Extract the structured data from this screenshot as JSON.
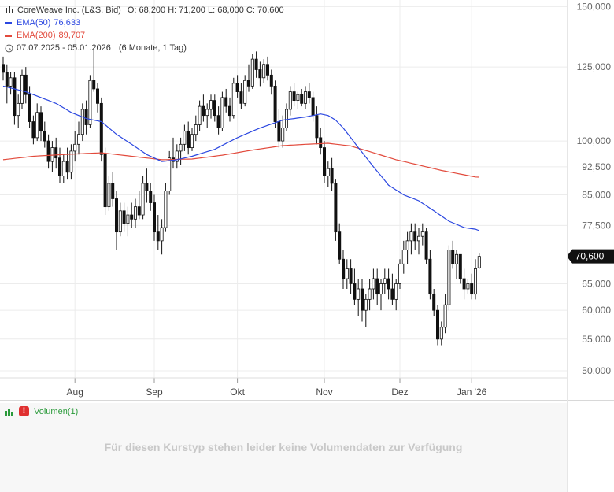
{
  "legend": {
    "title": "CoreWeave Inc. (L&S, Bid)",
    "ohlc": "O: 68,200   H: 71,200   L: 68,000   C: 70,600",
    "ema50": {
      "label": "EMA(50)",
      "value": "76,633",
      "color": "#2b47e0"
    },
    "ema200": {
      "label": "EMA(200)",
      "value": "89,707",
      "color": "#e24a3c"
    },
    "range": "07.07.2025 - 05.01.2026",
    "period": "(6 Monate, 1 Tag)"
  },
  "volume": {
    "label": "Volumen(1)",
    "message": "Für diesen Kurstyp stehen leider keine Volumendaten zur Verfügung"
  },
  "chart_data": {
    "type": "candlestick",
    "y_scale": "log",
    "ylim": [
      47000,
      153000
    ],
    "y_ticks": [
      50000,
      55000,
      60000,
      65000,
      70600,
      77500,
      85000,
      92500,
      100000,
      125000,
      150000
    ],
    "y_tick_labels": [
      "50,000",
      "55,000",
      "60,000",
      "65,000",
      "70,600",
      "77,500",
      "85,000",
      "92,500",
      "100,000",
      "125,000",
      "150,000"
    ],
    "last_price": 70600,
    "last_price_label": "70,600",
    "x_labels": [
      {
        "label": "Aug",
        "index": 19
      },
      {
        "label": "Sep",
        "index": 40
      },
      {
        "label": "Okt",
        "index": 62
      },
      {
        "label": "Nov",
        "index": 85
      },
      {
        "label": "Dez",
        "index": 105
      },
      {
        "label": "Jan '26",
        "index": 124
      }
    ],
    "candles": [
      [
        126000,
        129000,
        120000,
        123000
      ],
      [
        123000,
        126000,
        112000,
        118000
      ],
      [
        118000,
        123000,
        115000,
        121000
      ],
      [
        121000,
        123000,
        105000,
        108000
      ],
      [
        108000,
        115000,
        104000,
        112000
      ],
      [
        112000,
        124000,
        110000,
        122000
      ],
      [
        122000,
        125000,
        112000,
        115000
      ],
      [
        115000,
        118000,
        104000,
        106000
      ],
      [
        106000,
        108000,
        99000,
        101000
      ],
      [
        101000,
        112000,
        100000,
        109000
      ],
      [
        109000,
        111000,
        100000,
        103000
      ],
      [
        103000,
        106000,
        98000,
        100000
      ],
      [
        100000,
        102000,
        92000,
        94000
      ],
      [
        94000,
        100000,
        91000,
        98000
      ],
      [
        98000,
        101000,
        92000,
        95000
      ],
      [
        95000,
        98000,
        88000,
        90000
      ],
      [
        90000,
        96000,
        88000,
        94000
      ],
      [
        94000,
        98000,
        89000,
        91000
      ],
      [
        91000,
        99000,
        89000,
        97000
      ],
      [
        97000,
        103000,
        94000,
        99000
      ],
      [
        99000,
        106000,
        96000,
        102000
      ],
      [
        102000,
        112000,
        100000,
        110000
      ],
      [
        110000,
        113000,
        102000,
        105000
      ],
      [
        105000,
        122000,
        104000,
        120000
      ],
      [
        120000,
        132000,
        116000,
        117000
      ],
      [
        117000,
        119000,
        109000,
        112000
      ],
      [
        112000,
        114000,
        94000,
        96000
      ],
      [
        96000,
        98000,
        80000,
        82000
      ],
      [
        82000,
        90000,
        81000,
        88000
      ],
      [
        88000,
        91000,
        82000,
        84000
      ],
      [
        84000,
        86000,
        72000,
        76000
      ],
      [
        76000,
        83000,
        75000,
        81000
      ],
      [
        81000,
        83000,
        76000,
        78000
      ],
      [
        78000,
        82000,
        75000,
        80000
      ],
      [
        80000,
        83000,
        77000,
        79000
      ],
      [
        79000,
        84000,
        77000,
        82000
      ],
      [
        82000,
        86000,
        79000,
        80000
      ],
      [
        80000,
        90000,
        79000,
        88000
      ],
      [
        88000,
        92000,
        83000,
        86000
      ],
      [
        86000,
        88000,
        81000,
        83000
      ],
      [
        83000,
        85000,
        74000,
        76000
      ],
      [
        76000,
        80000,
        72000,
        74000
      ],
      [
        74000,
        79000,
        71000,
        77000
      ],
      [
        77000,
        88000,
        76000,
        86000
      ],
      [
        86000,
        97000,
        85000,
        95000
      ],
      [
        95000,
        101000,
        92000,
        94000
      ],
      [
        94000,
        99000,
        92000,
        97000
      ],
      [
        97000,
        101000,
        93000,
        99000
      ],
      [
        99000,
        105000,
        97000,
        103000
      ],
      [
        103000,
        106000,
        96000,
        98000
      ],
      [
        98000,
        104000,
        97000,
        102000
      ],
      [
        102000,
        108000,
        100000,
        105000
      ],
      [
        105000,
        113000,
        103000,
        111000
      ],
      [
        111000,
        115000,
        106000,
        108000
      ],
      [
        108000,
        112000,
        104000,
        110000
      ],
      [
        110000,
        115000,
        107000,
        113000
      ],
      [
        113000,
        115000,
        106000,
        108000
      ],
      [
        108000,
        111000,
        102000,
        104000
      ],
      [
        104000,
        116000,
        103000,
        114000
      ],
      [
        114000,
        117000,
        109000,
        111000
      ],
      [
        111000,
        114000,
        106000,
        108000
      ],
      [
        108000,
        121000,
        107000,
        119000
      ],
      [
        119000,
        122000,
        114000,
        116000
      ],
      [
        116000,
        119000,
        110000,
        112000
      ],
      [
        112000,
        122000,
        111000,
        120000
      ],
      [
        120000,
        126000,
        116000,
        118000
      ],
      [
        118000,
        130000,
        117000,
        128000
      ],
      [
        128000,
        131000,
        121000,
        124000
      ],
      [
        124000,
        127000,
        118000,
        121000
      ],
      [
        121000,
        128000,
        119000,
        126000
      ],
      [
        126000,
        129000,
        120000,
        122000
      ],
      [
        122000,
        124000,
        115000,
        118000
      ],
      [
        118000,
        120000,
        104000,
        106000
      ],
      [
        106000,
        110000,
        98000,
        100000
      ],
      [
        100000,
        108000,
        98000,
        104000
      ],
      [
        104000,
        112000,
        103000,
        110000
      ],
      [
        110000,
        118000,
        108000,
        116000
      ],
      [
        116000,
        119000,
        111000,
        113000
      ],
      [
        113000,
        116000,
        110000,
        115000
      ],
      [
        115000,
        117000,
        111000,
        112000
      ],
      [
        112000,
        118000,
        110000,
        116000
      ],
      [
        116000,
        119000,
        112000,
        114000
      ],
      [
        114000,
        116000,
        106000,
        108000
      ],
      [
        108000,
        111000,
        99000,
        101000
      ],
      [
        101000,
        104000,
        96000,
        98000
      ],
      [
        98000,
        100000,
        88000,
        90000
      ],
      [
        90000,
        94000,
        87000,
        92000
      ],
      [
        92000,
        95000,
        86000,
        88000
      ],
      [
        88000,
        89000,
        74000,
        76000
      ],
      [
        76000,
        78000,
        69000,
        70000
      ],
      [
        70000,
        72000,
        64000,
        66000
      ],
      [
        66000,
        70000,
        64000,
        68000
      ],
      [
        68000,
        70000,
        63000,
        65000
      ],
      [
        65000,
        68000,
        61000,
        62000
      ],
      [
        62000,
        66000,
        59000,
        64000
      ],
      [
        64000,
        66000,
        58000,
        60000
      ],
      [
        60000,
        63000,
        57000,
        62000
      ],
      [
        62000,
        66000,
        60000,
        64000
      ],
      [
        64000,
        68000,
        62000,
        66000
      ],
      [
        66000,
        68000,
        61000,
        63000
      ],
      [
        63000,
        66000,
        60000,
        65000
      ],
      [
        65000,
        68000,
        63000,
        66000
      ],
      [
        66000,
        68000,
        62000,
        64000
      ],
      [
        64000,
        67000,
        61000,
        62000
      ],
      [
        62000,
        66000,
        60000,
        65000
      ],
      [
        65000,
        70000,
        64000,
        69000
      ],
      [
        69000,
        74000,
        67000,
        72000
      ],
      [
        72000,
        76000,
        69000,
        74000
      ],
      [
        74000,
        78000,
        71000,
        76000
      ],
      [
        76000,
        78000,
        72000,
        74000
      ],
      [
        74000,
        77000,
        71000,
        75000
      ],
      [
        75000,
        78000,
        73000,
        76000
      ],
      [
        76000,
        77000,
        69000,
        70000
      ],
      [
        70000,
        72000,
        62000,
        63000
      ],
      [
        63000,
        64000,
        59000,
        60000
      ],
      [
        60000,
        61000,
        54000,
        55000
      ],
      [
        55000,
        58000,
        54000,
        57000
      ],
      [
        57000,
        63000,
        56000,
        61000
      ],
      [
        61000,
        73000,
        60000,
        72000
      ],
      [
        72000,
        74000,
        68000,
        69000
      ],
      [
        69000,
        72000,
        66000,
        71000
      ],
      [
        71000,
        71000,
        65000,
        66000
      ],
      [
        66000,
        68000,
        62000,
        64000
      ],
      [
        64000,
        66000,
        63000,
        65000
      ],
      [
        65000,
        67000,
        62000,
        63000
      ],
      [
        63000,
        70000,
        62000,
        68000
      ],
      [
        68200,
        71200,
        68000,
        70600
      ]
    ],
    "ema50_anchors": [
      [
        0,
        118000
      ],
      [
        6,
        116000
      ],
      [
        10,
        114000
      ],
      [
        14,
        112000
      ],
      [
        18,
        109000
      ],
      [
        22,
        107000
      ],
      [
        26,
        106000
      ],
      [
        30,
        102000
      ],
      [
        34,
        99000
      ],
      [
        38,
        96000
      ],
      [
        42,
        94000
      ],
      [
        46,
        94500
      ],
      [
        50,
        95500
      ],
      [
        56,
        97500
      ],
      [
        62,
        101000
      ],
      [
        68,
        104000
      ],
      [
        74,
        106500
      ],
      [
        80,
        107500
      ],
      [
        84,
        108500
      ],
      [
        86,
        108000
      ],
      [
        88,
        106500
      ],
      [
        90,
        104000
      ],
      [
        94,
        98000
      ],
      [
        98,
        92500
      ],
      [
        102,
        87500
      ],
      [
        106,
        85000
      ],
      [
        110,
        83500
      ],
      [
        114,
        81000
      ],
      [
        118,
        78500
      ],
      [
        122,
        77000
      ],
      [
        125,
        76633
      ]
    ],
    "ema200_anchors": [
      [
        0,
        94500
      ],
      [
        8,
        95500
      ],
      [
        16,
        96000
      ],
      [
        26,
        96500
      ],
      [
        34,
        95500
      ],
      [
        42,
        94500
      ],
      [
        50,
        94700
      ],
      [
        58,
        95800
      ],
      [
        66,
        97300
      ],
      [
        74,
        98600
      ],
      [
        80,
        99000
      ],
      [
        86,
        99300
      ],
      [
        92,
        98500
      ],
      [
        98,
        96500
      ],
      [
        104,
        94500
      ],
      [
        110,
        93000
      ],
      [
        116,
        91500
      ],
      [
        122,
        90300
      ],
      [
        125,
        89707
      ]
    ]
  }
}
